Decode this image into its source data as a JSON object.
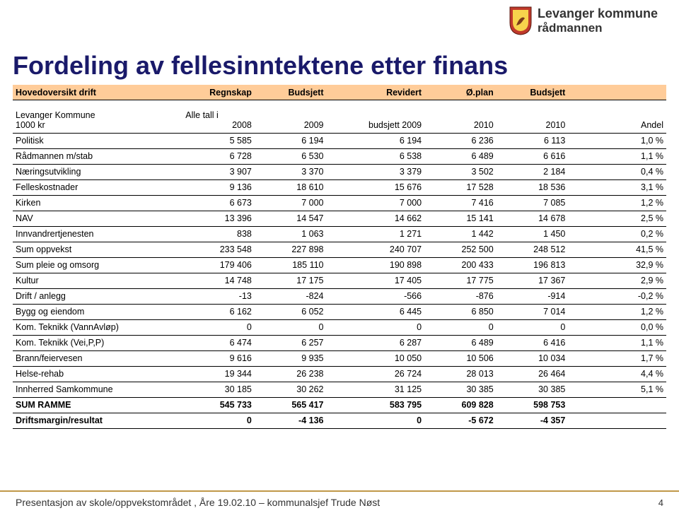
{
  "header": {
    "org_line1": "Levanger kommune",
    "org_line2": "rådmannen"
  },
  "title": "Fordeling av fellesinntektene etter finans",
  "table": {
    "header": {
      "col0": "Hovedoversikt drift",
      "col1": "Regnskap",
      "col2": "Budsjett",
      "col3": "Revidert",
      "col4": "Ø.plan",
      "col5": "Budsjett",
      "col6": ""
    },
    "subheader": {
      "lbl1": "Levanger Kommune",
      "lbl2": "1000 kr",
      "note": "Alle tall i",
      "c1": "2008",
      "c2": "2009",
      "c3": "budsjett 2009",
      "c4": "2010",
      "c5": "2010",
      "c6": "Andel"
    },
    "rows": [
      {
        "label": "Politisk",
        "v": [
          "5 585",
          "6 194",
          "6 194",
          "6 236",
          "6 113",
          "1,0 %"
        ],
        "bold": false
      },
      {
        "label": "Rådmannen m/stab",
        "v": [
          "6 728",
          "6 530",
          "6 538",
          "6 489",
          "6 616",
          "1,1 %"
        ],
        "bold": false
      },
      {
        "label": "Næringsutvikling",
        "v": [
          "3 907",
          "3 370",
          "3 379",
          "3 502",
          "2 184",
          "0,4 %"
        ],
        "bold": false
      },
      {
        "label": "Felleskostnader",
        "v": [
          "9 136",
          "18 610",
          "15 676",
          "17 528",
          "18 536",
          "3,1 %"
        ],
        "bold": false
      },
      {
        "label": "Kirken",
        "v": [
          "6 673",
          "7 000",
          "7 000",
          "7 416",
          "7 085",
          "1,2 %"
        ],
        "bold": false
      },
      {
        "label": "NAV",
        "v": [
          "13 396",
          "14 547",
          "14 662",
          "15 141",
          "14 678",
          "2,5 %"
        ],
        "bold": false
      },
      {
        "label": "Innvandrertjenesten",
        "v": [
          "838",
          "1 063",
          "1 271",
          "1 442",
          "1 450",
          "0,2 %"
        ],
        "bold": false
      },
      {
        "label": "Sum oppvekst",
        "v": [
          "233 548",
          "227 898",
          "240 707",
          "252 500",
          "248 512",
          "41,5 %"
        ],
        "bold": false
      },
      {
        "label": "Sum pleie og omsorg",
        "v": [
          "179 406",
          "185 110",
          "190 898",
          "200 433",
          "196 813",
          "32,9 %"
        ],
        "bold": false
      },
      {
        "label": "Kultur",
        "v": [
          "14 748",
          "17 175",
          "17 405",
          "17 775",
          "17 367",
          "2,9 %"
        ],
        "bold": false
      },
      {
        "label": "Drift / anlegg",
        "v": [
          "-13",
          "-824",
          "-566",
          "-876",
          "-914",
          "-0,2 %"
        ],
        "bold": false
      },
      {
        "label": "Bygg og eiendom",
        "v": [
          "6 162",
          "6 052",
          "6 445",
          "6 850",
          "7 014",
          "1,2 %"
        ],
        "bold": false
      },
      {
        "label": "Kom. Teknikk  (VannAvløp)",
        "v": [
          "0",
          "0",
          "0",
          "0",
          "0",
          "0,0 %"
        ],
        "bold": false
      },
      {
        "label": "Kom. Teknikk  (Vei,P,P)",
        "v": [
          "6 474",
          "6 257",
          "6 287",
          "6 489",
          "6 416",
          "1,1 %"
        ],
        "bold": false
      },
      {
        "label": "Brann/feiervesen",
        "v": [
          "9 616",
          "9 935",
          "10 050",
          "10 506",
          "10 034",
          "1,7 %"
        ],
        "bold": false
      },
      {
        "label": "Helse-rehab",
        "v": [
          "19 344",
          "26 238",
          "26 724",
          "28 013",
          "26 464",
          "4,4 %"
        ],
        "bold": false
      },
      {
        "label": "Innherred Samkommune",
        "v": [
          "30 185",
          "30 262",
          "31 125",
          "30 385",
          "30 385",
          "5,1 %"
        ],
        "bold": false
      },
      {
        "label": "SUM  RAMME",
        "v": [
          "545 733",
          "565 417",
          "583 795",
          "609 828",
          "598 753",
          ""
        ],
        "bold": true
      },
      {
        "label": "Driftsmargin/resultat",
        "v": [
          "0",
          "-4 136",
          "0",
          "-5 672",
          "-4 357",
          ""
        ],
        "bold": true
      }
    ],
    "col_widths_pct": [
      26,
      11,
      11,
      15,
      11,
      11,
      15
    ]
  },
  "footer": {
    "text": "Presentasjon av skole/oppvekstområdet , Åre 19.02.10 – kommunalsjef Trude Nøst",
    "page": "4"
  },
  "colors": {
    "header_bg": "#ffcc99",
    "title_color": "#1a1a6a",
    "footer_border": "#c09848",
    "shield_outer": "#c0392b",
    "shield_inner": "#f7d44c",
    "text": "#333333"
  },
  "fonts": {
    "title_pt": 36,
    "table_pt": 12.5,
    "footer_pt": 14
  }
}
